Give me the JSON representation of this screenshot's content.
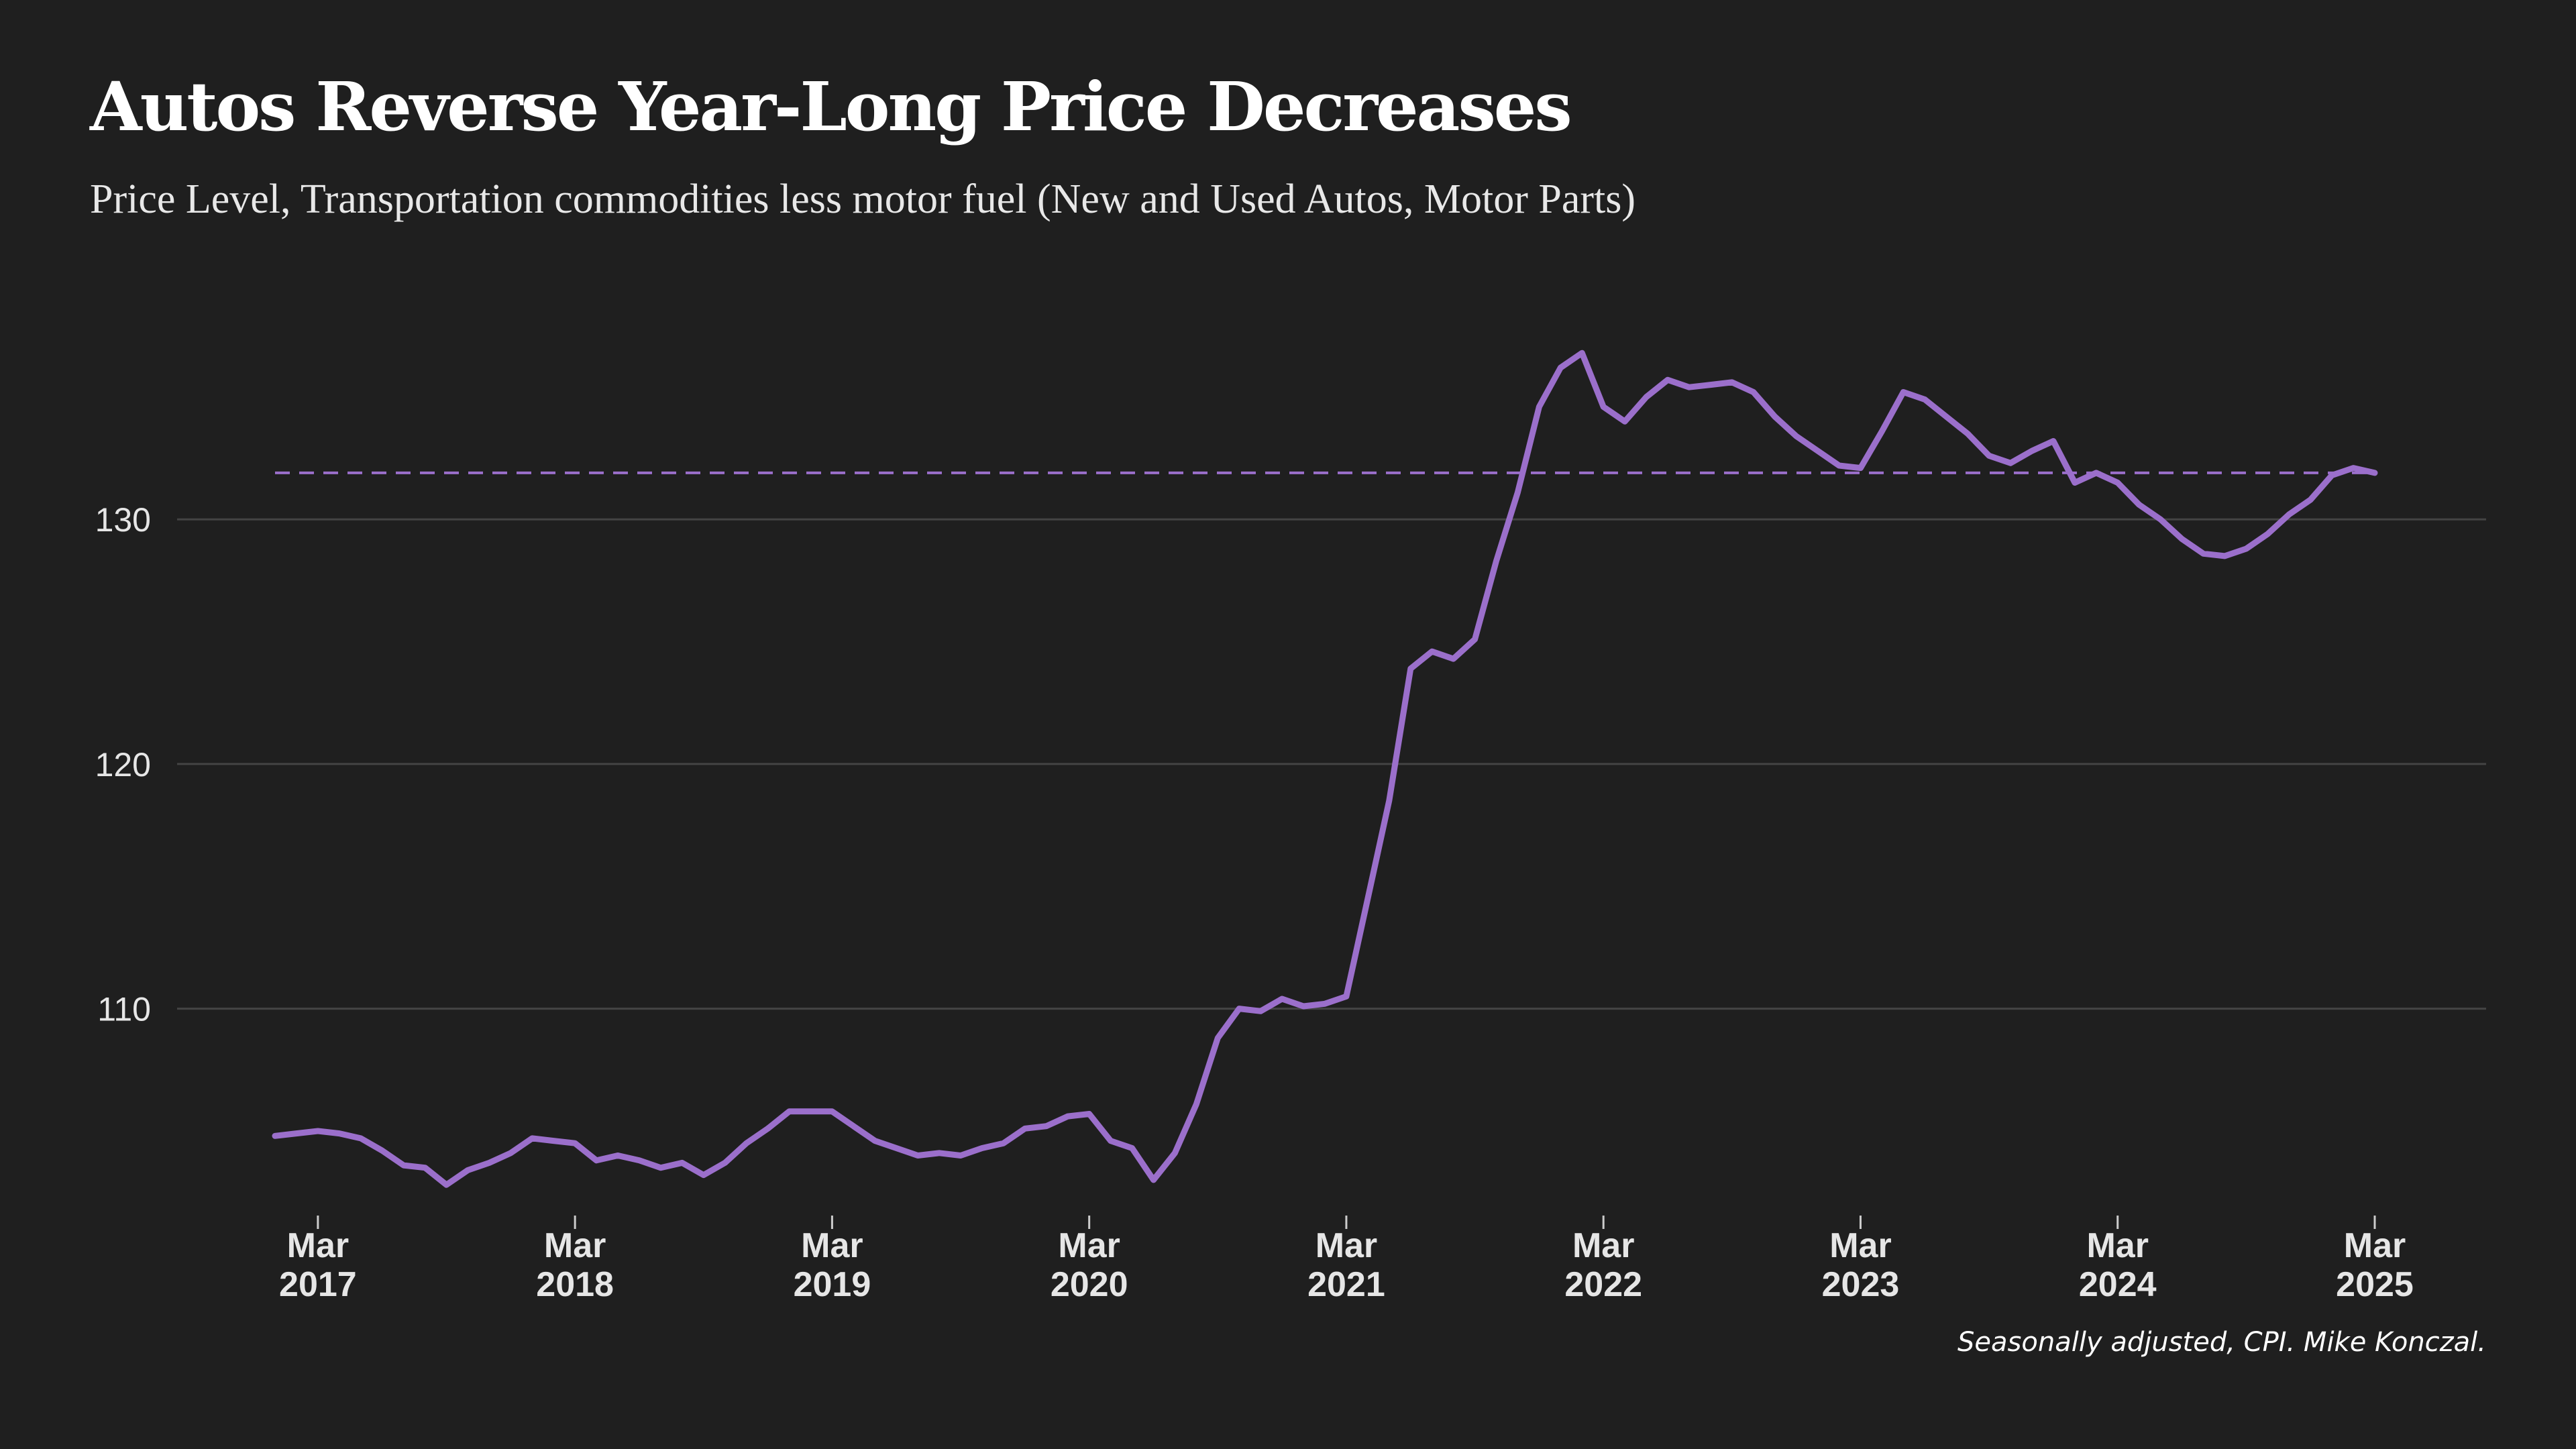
{
  "chart_data": {
    "type": "line",
    "title": "Autos Reverse Year-Long Price Decreases",
    "subtitle": "Price Level, Transportation commodities less motor fuel (New and Used Autos, Motor Parts)",
    "note": "Seasonally adjusted, CPI. Mike Konczal.",
    "xlabel": "",
    "ylabel": "",
    "x_start": "2017-01",
    "x_end": "2025-03",
    "x_ticks": [
      {
        "month": "Mar",
        "year": "2017",
        "date": "2017-03"
      },
      {
        "month": "Mar",
        "year": "2018",
        "date": "2018-03"
      },
      {
        "month": "Mar",
        "year": "2019",
        "date": "2019-03"
      },
      {
        "month": "Mar",
        "year": "2020",
        "date": "2020-03"
      },
      {
        "month": "Mar",
        "year": "2021",
        "date": "2021-03"
      },
      {
        "month": "Mar",
        "year": "2022",
        "date": "2022-03"
      },
      {
        "month": "Mar",
        "year": "2023",
        "date": "2023-03"
      },
      {
        "month": "Mar",
        "year": "2024",
        "date": "2024-03"
      },
      {
        "month": "Mar",
        "year": "2025",
        "date": "2025-03"
      }
    ],
    "y_ticks": [
      110,
      120,
      130
    ],
    "ylim": [
      101.6,
      139.3
    ],
    "grid": true,
    "line_color": "#9b6fcb",
    "reference_line": {
      "value": 131.9,
      "style": "dashed",
      "color": "#9b6fcb"
    },
    "series": [
      {
        "values": [
          104.8,
          104.9,
          105.0,
          104.9,
          104.7,
          104.2,
          103.6,
          103.5,
          102.8,
          103.4,
          103.7,
          104.1,
          104.7,
          104.6,
          104.5,
          103.8,
          104.0,
          103.8,
          103.5,
          103.7,
          103.2,
          103.7,
          104.5,
          105.1,
          105.8,
          105.8,
          105.8,
          105.2,
          104.6,
          104.3,
          104.0,
          104.1,
          104.0,
          104.3,
          104.5,
          105.1,
          105.2,
          105.6,
          105.7,
          104.6,
          104.3,
          103.0,
          104.1,
          106.1,
          108.8,
          110.0,
          109.9,
          110.4,
          110.1,
          110.2,
          110.5,
          114.5,
          118.5,
          123.9,
          124.6,
          124.3,
          125.1,
          128.3,
          131.1,
          134.6,
          136.2,
          136.8,
          134.6,
          134.0,
          135.0,
          135.7,
          135.4,
          135.5,
          135.6,
          135.2,
          134.2,
          133.4,
          132.8,
          132.2,
          132.1,
          133.6,
          135.2,
          134.9,
          134.2,
          133.5,
          132.6,
          132.3,
          132.8,
          133.2,
          131.5,
          131.9,
          131.5,
          130.6,
          130.0,
          129.2,
          128.6,
          128.5,
          128.8,
          129.4,
          130.2,
          130.8,
          131.8,
          132.1,
          131.9
        ]
      }
    ]
  }
}
